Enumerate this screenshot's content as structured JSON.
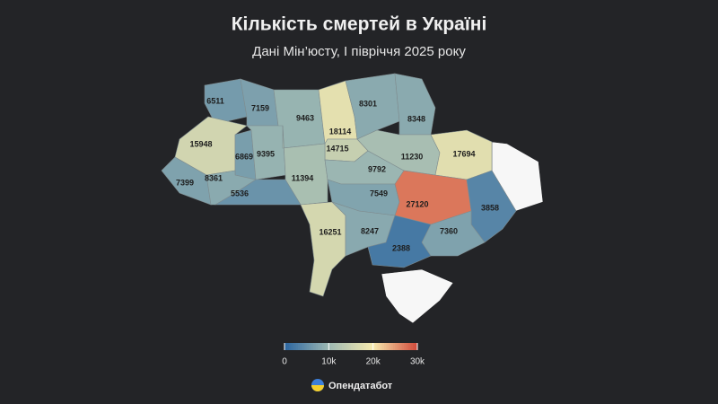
{
  "title": "Кількість смертей в Україні",
  "subtitle": "Дані Мін’юсту, І півріччя 2025 року",
  "regions": [
    6511,
    7159,
    9463,
    18114,
    14715,
    8301,
    8348,
    15948,
    6869,
    9395,
    11394,
    9792,
    11230,
    17694,
    7399,
    8361,
    5536,
    7549,
    27120,
    3858,
    16251,
    8247,
    7360,
    2388
  ],
  "no_data_color": "#f7f7f7",
  "legend": {
    "range": [
      0,
      30000
    ],
    "ticks": [
      0,
      {
        "value": 10000,
        "label": "10k"
      },
      {
        "value": 20000,
        "label": "20k"
      },
      {
        "value": 30000,
        "label": "30k"
      }
    ],
    "colors": [
      "#2b65a0",
      "#9db8b2",
      "#f5e9ae",
      "#d1493a"
    ]
  },
  "brand": "Опендатабот"
}
